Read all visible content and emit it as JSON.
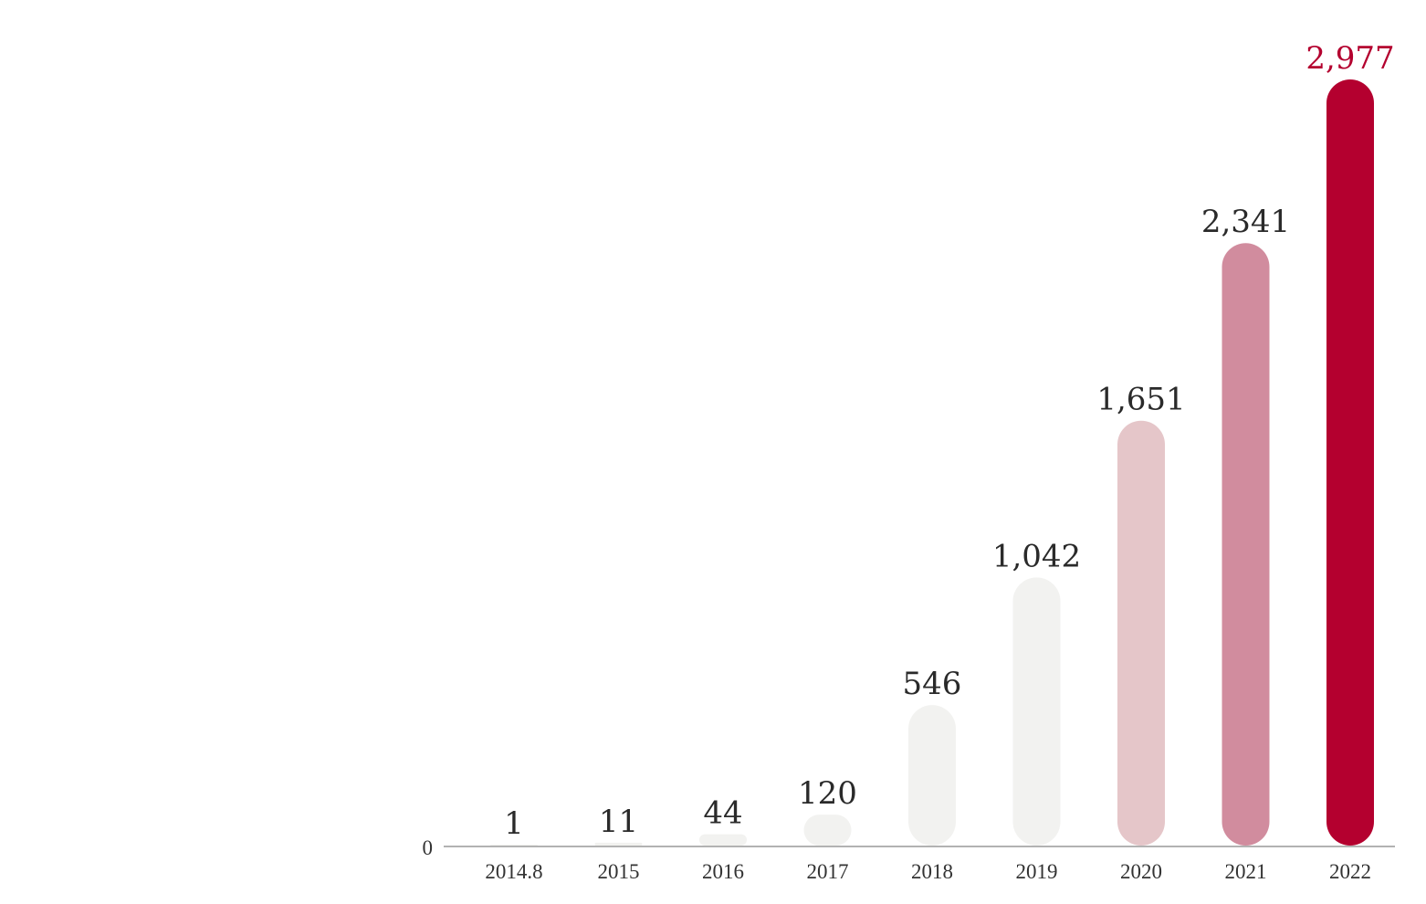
{
  "chart_data": {
    "type": "bar",
    "categories": [
      "2014.8",
      "2015",
      "2016",
      "2017",
      "2018",
      "2019",
      "2020",
      "2021",
      "2022"
    ],
    "values": [
      1,
      11,
      44,
      120,
      546,
      1042,
      1651,
      2341,
      2977
    ],
    "value_labels": [
      "1",
      "11",
      "44",
      "120",
      "546",
      "1,042",
      "1,651",
      "2,341",
      "2,977"
    ],
    "y_tick_labels": [
      "0"
    ],
    "title": "",
    "xlabel": "",
    "ylabel": "",
    "ylim": [
      0,
      2977
    ],
    "grid": false,
    "bar_colors": [
      "#f2f2f0",
      "#f2f2f0",
      "#f2f2f0",
      "#f2f2f0",
      "#f2f2f0",
      "#f2f2f0",
      "#e5c6c9",
      "#d18c9e",
      "#b4002f"
    ],
    "highlight_label_color": "#b4002f",
    "label_color": "#2a2a2a",
    "axis_color": "#999999"
  }
}
